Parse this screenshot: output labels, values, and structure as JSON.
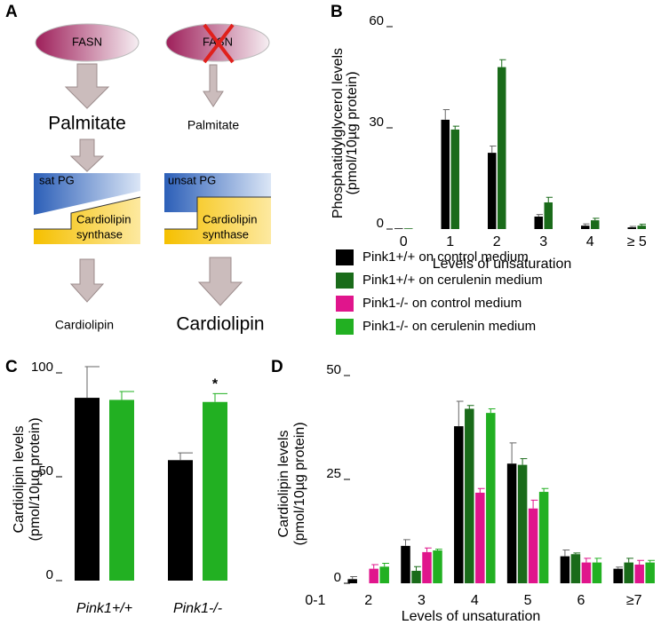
{
  "diagram": {
    "panel": "A",
    "left": {
      "enzyme": "FASN",
      "product": "Palmitate",
      "substrate": "sat PG",
      "synthase": [
        "Cardiolipin",
        "synthase"
      ],
      "result": "Cardiolipin"
    },
    "right": {
      "enzyme": "FASN",
      "product": "Palmitate",
      "substrate": "unsat PG",
      "synthase": [
        "Cardiolipin",
        "synthase"
      ],
      "result": "Cardiolipin"
    }
  },
  "chart_data": [
    {
      "type": "bar",
      "panel": "B",
      "ylabel": [
        "Phosphatidylglycerol levels",
        "(pmol/10µg protein)"
      ],
      "xlabel": "Levels of unsaturation",
      "categories": [
        "0",
        "1",
        "2",
        "3",
        "4",
        "≥ 5"
      ],
      "series": [
        {
          "color": "#000000",
          "values": [
            0.2,
            32.4,
            22.6,
            3.7,
            1,
            0.5
          ],
          "errors": [
            0,
            3,
            2,
            0.6,
            0.5,
            0.3
          ]
        },
        {
          "color": "#1a6b1a",
          "values": [
            0.2,
            29.5,
            48,
            7.9,
            2.6,
            1
          ],
          "errors": [
            0,
            1,
            2.2,
            1.5,
            0.6,
            0.4
          ]
        }
      ],
      "ylim": [
        0,
        60
      ],
      "yticks": [
        0,
        30,
        60
      ]
    },
    {
      "type": "bar",
      "panel": "C",
      "ylabel": [
        "Cardiolipin levels",
        "(pmol/10µg protein)"
      ],
      "categories": [
        "Pink1+/+",
        "Pink1-/-"
      ],
      "category_colors": [
        "#000000",
        "#e0158c"
      ],
      "series": [
        {
          "color": "#000000",
          "values": [
            88,
            58
          ],
          "errors": [
            15,
            3.5
          ]
        },
        {
          "color": "#22b022",
          "values": [
            87,
            86
          ],
          "errors": [
            4,
            4
          ]
        }
      ],
      "annotations": [
        {
          "text": "*",
          "series": 1,
          "category": 1
        }
      ],
      "ylim": [
        0,
        100
      ],
      "yticks": [
        0,
        50,
        100
      ]
    },
    {
      "type": "bar",
      "panel": "D",
      "ylabel": [
        "Cardiolipin levels",
        "(pmol/10µg protein)"
      ],
      "xlabel": "Levels of unsaturation",
      "categories": [
        "0-1",
        "2",
        "3",
        "4",
        "5",
        "6",
        "≥7"
      ],
      "series": [
        {
          "name": "Pink1+/+ on control medium",
          "color": "#000000",
          "values": [
            0,
            1,
            9,
            37.8,
            28.8,
            6.5,
            3.5
          ],
          "errors": [
            0,
            0.6,
            1.5,
            6,
            5,
            1.5,
            0.4
          ]
        },
        {
          "name": "Pink1+/+ on cerulenin medium",
          "color": "#1a6b1a",
          "values": [
            0,
            0,
            3,
            42,
            28.5,
            7,
            5
          ],
          "errors": [
            0,
            0,
            1,
            0.8,
            1.5,
            0.3,
            1
          ]
        },
        {
          "name": "Pink1-/- on control medium",
          "color": "#e0158c",
          "values": [
            0,
            3.5,
            7.5,
            21.8,
            18,
            5,
            4.5
          ],
          "errors": [
            0,
            1,
            1,
            1,
            2,
            1,
            1
          ]
        },
        {
          "name": "Pink1-/- on cerulenin medium",
          "color": "#22b022",
          "values": [
            0,
            4,
            7.9,
            41,
            22,
            5,
            5
          ],
          "errors": [
            0,
            0.8,
            0.3,
            1,
            0.8,
            1,
            0.5
          ]
        }
      ],
      "ylim": [
        0,
        50
      ],
      "yticks": [
        0,
        25,
        50
      ]
    }
  ]
}
